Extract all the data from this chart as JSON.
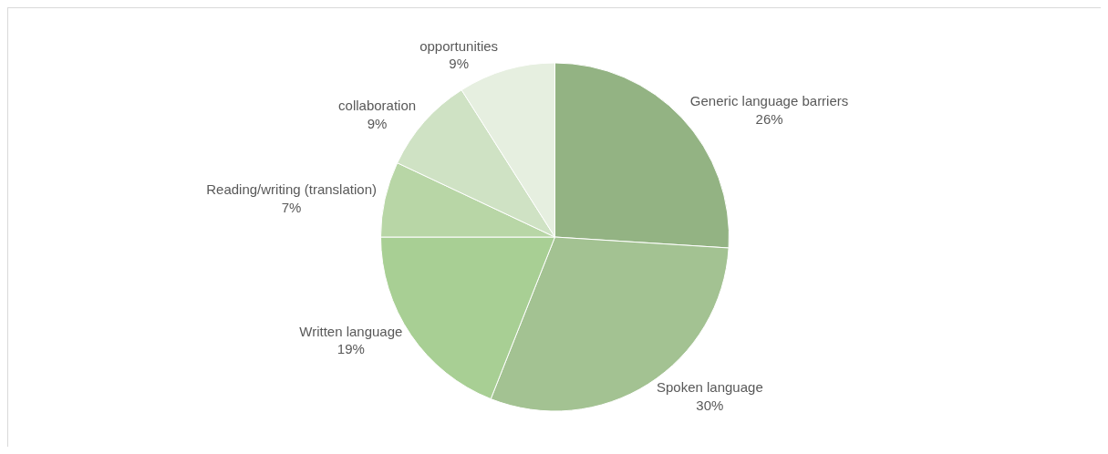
{
  "chart_data": {
    "type": "pie",
    "categories": [
      "Generic language barriers",
      "Spoken language",
      "Written language",
      "Reading/writing (translation)",
      "collaboration",
      "opportunities"
    ],
    "values": [
      26,
      30,
      19,
      7,
      9,
      9
    ],
    "value_labels": [
      "26%",
      "30%",
      "19%",
      "7%",
      "9%",
      "9%"
    ],
    "colors": [
      "#93b383",
      "#a3c292",
      "#a8cf94",
      "#b8d6a6",
      "#cfe2c4",
      "#e6efe0"
    ]
  }
}
